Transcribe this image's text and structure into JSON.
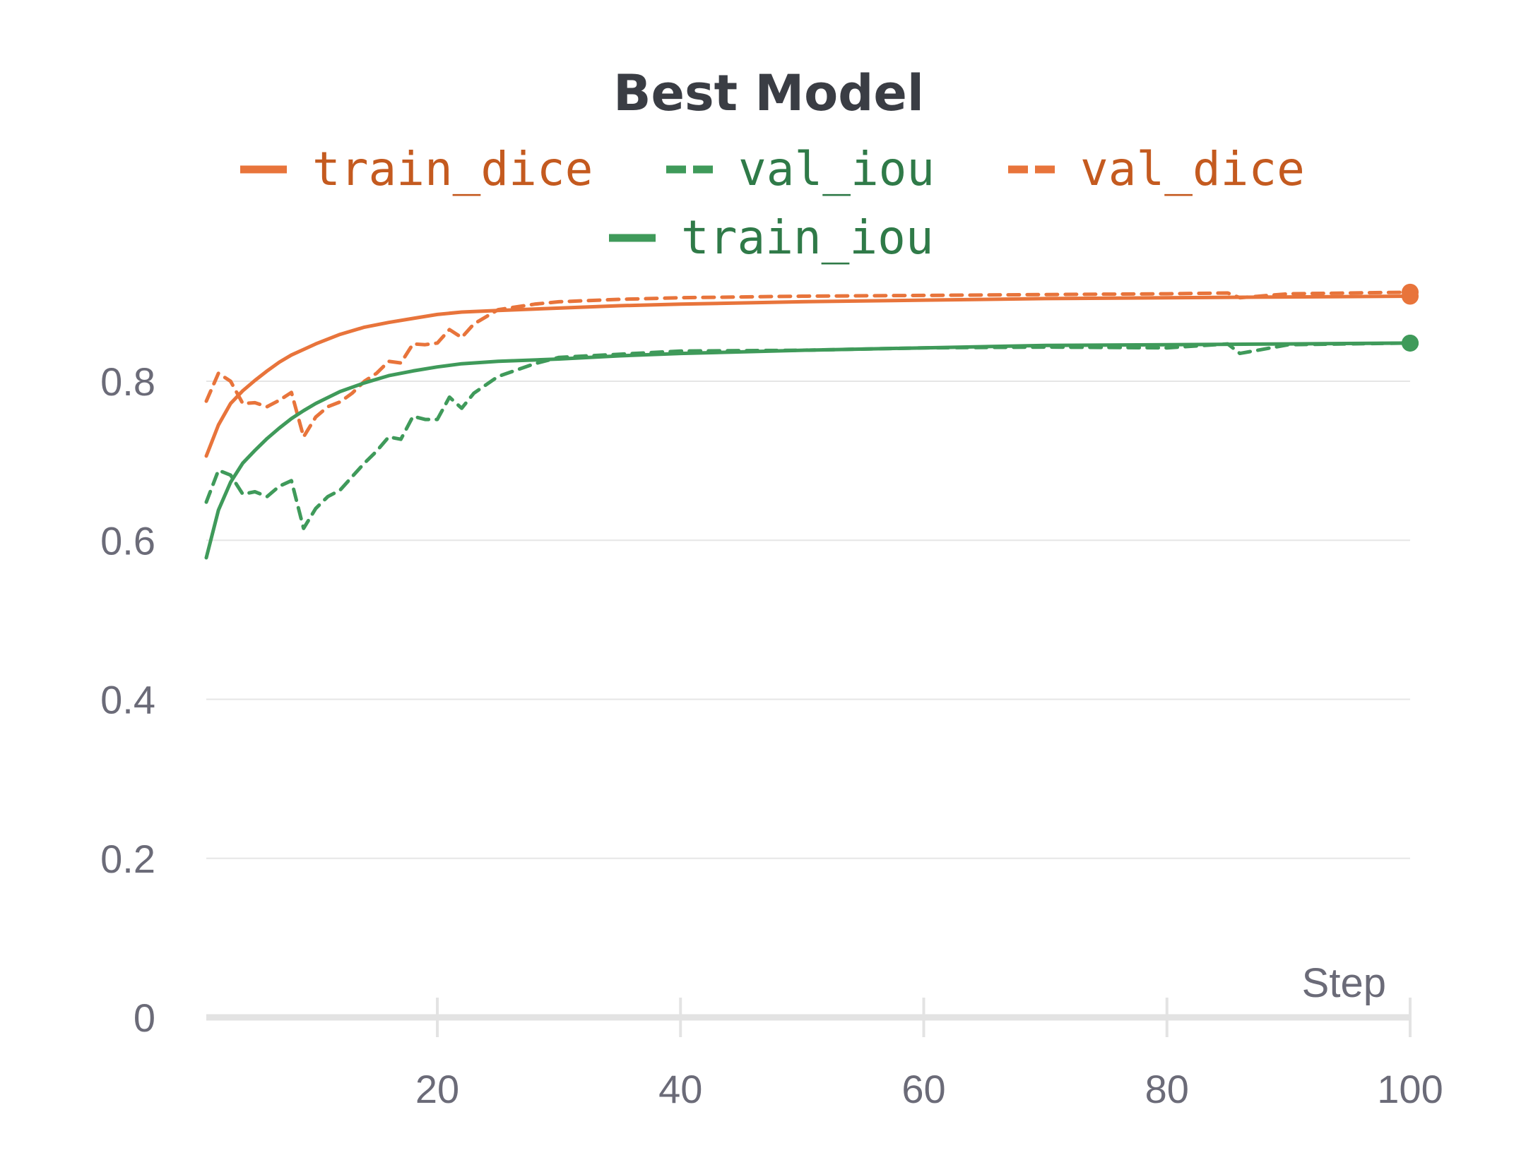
{
  "chart_data": {
    "type": "line",
    "title": "Best Model",
    "xlabel": "Step",
    "ylabel": "",
    "xlim": [
      1,
      100
    ],
    "ylim": [
      0,
      1
    ],
    "x_ticks": [
      20,
      40,
      60,
      80,
      100
    ],
    "y_ticks": [
      0,
      0.2,
      0.4,
      0.6,
      0.8
    ],
    "y_tick_labels": [
      "0",
      "0.2",
      "0.4",
      "0.6",
      "0.8"
    ],
    "grid": true,
    "legend_position": "top",
    "series": [
      {
        "name": "train_dice",
        "color": "#e8743b",
        "dash": "solid",
        "x": [
          1,
          2,
          3,
          4,
          5,
          6,
          7,
          8,
          9,
          10,
          12,
          14,
          16,
          18,
          20,
          22,
          25,
          30,
          35,
          40,
          50,
          60,
          70,
          80,
          90,
          100
        ],
        "y": [
          0.706,
          0.745,
          0.772,
          0.788,
          0.801,
          0.813,
          0.824,
          0.833,
          0.84,
          0.847,
          0.859,
          0.868,
          0.874,
          0.879,
          0.884,
          0.887,
          0.889,
          0.892,
          0.895,
          0.897,
          0.9,
          0.902,
          0.904,
          0.905,
          0.906,
          0.907
        ]
      },
      {
        "name": "val_iou",
        "color": "#3f9a5a",
        "dash": "dashed",
        "x": [
          1,
          2,
          3,
          4,
          5,
          6,
          7,
          8,
          9,
          10,
          11,
          12,
          13,
          14,
          15,
          16,
          17,
          18,
          19,
          20,
          21,
          22,
          23,
          25,
          28,
          30,
          35,
          40,
          50,
          60,
          70,
          80,
          85,
          86,
          90,
          100
        ],
        "y": [
          0.648,
          0.688,
          0.682,
          0.658,
          0.661,
          0.655,
          0.668,
          0.675,
          0.615,
          0.64,
          0.655,
          0.663,
          0.68,
          0.697,
          0.712,
          0.73,
          0.727,
          0.756,
          0.752,
          0.752,
          0.78,
          0.766,
          0.785,
          0.806,
          0.822,
          0.83,
          0.834,
          0.838,
          0.839,
          0.842,
          0.843,
          0.842,
          0.847,
          0.835,
          0.846,
          0.848
        ]
      },
      {
        "name": "val_dice",
        "color": "#e8743b",
        "dash": "dashed",
        "x": [
          1,
          2,
          3,
          4,
          5,
          6,
          7,
          8,
          9,
          10,
          11,
          12,
          13,
          14,
          15,
          16,
          17,
          18,
          19,
          20,
          21,
          22,
          23,
          25,
          28,
          30,
          35,
          40,
          50,
          60,
          70,
          80,
          85,
          86,
          90,
          100
        ],
        "y": [
          0.775,
          0.81,
          0.8,
          0.772,
          0.773,
          0.768,
          0.776,
          0.786,
          0.73,
          0.755,
          0.768,
          0.774,
          0.785,
          0.8,
          0.81,
          0.825,
          0.823,
          0.847,
          0.846,
          0.848,
          0.865,
          0.855,
          0.872,
          0.89,
          0.897,
          0.9,
          0.903,
          0.905,
          0.907,
          0.908,
          0.909,
          0.91,
          0.911,
          0.905,
          0.91,
          0.912
        ]
      },
      {
        "name": "train_iou",
        "color": "#3f9a5a",
        "dash": "solid",
        "x": [
          1,
          2,
          3,
          4,
          5,
          6,
          7,
          8,
          9,
          10,
          12,
          14,
          16,
          18,
          20,
          22,
          25,
          30,
          35,
          40,
          50,
          60,
          70,
          80,
          90,
          100
        ],
        "y": [
          0.578,
          0.638,
          0.673,
          0.697,
          0.713,
          0.728,
          0.741,
          0.753,
          0.763,
          0.772,
          0.787,
          0.798,
          0.807,
          0.813,
          0.818,
          0.822,
          0.825,
          0.828,
          0.832,
          0.835,
          0.839,
          0.842,
          0.845,
          0.846,
          0.847,
          0.848
        ]
      }
    ]
  }
}
